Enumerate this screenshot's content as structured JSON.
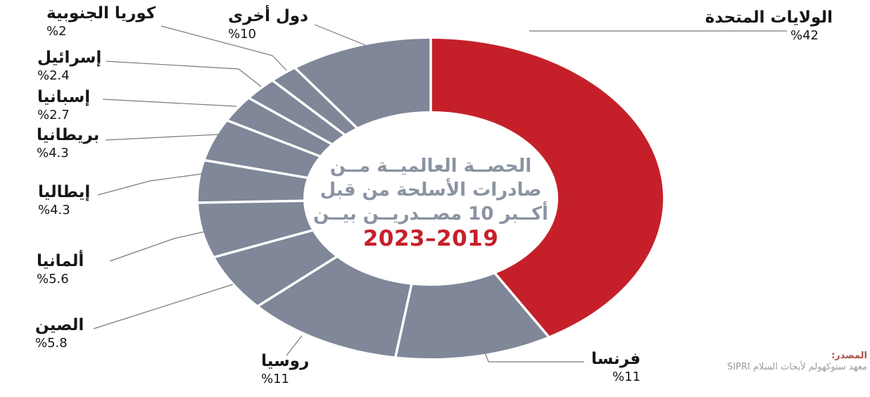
{
  "colors": {
    "red": "#C5202A",
    "gray": "#7F8798",
    "separator": "#FFFFFF",
    "leader": "#7A7A7A",
    "label_text": "#161616",
    "center_text": "#8B93A3",
    "period_text": "#C5202A",
    "source_label": "#B04E46",
    "source_text": "#9C9C9A",
    "background": "#FFFFFF"
  },
  "chart_data": {
    "type": "pie",
    "donut": true,
    "direction": "clockwise",
    "start_angle_deg": 0,
    "center_title_lines": [
      "الحصــة العالميــة مــن",
      "صادرات الأسلحة من قبل",
      "أكــبر 10 مصــدريــن بيــن"
    ],
    "center_period": "2023–2019",
    "slices": [
      {
        "key": "united-states",
        "label": "الولايات المتحدة",
        "value": 42,
        "display": "%42",
        "color_key": "red"
      },
      {
        "key": "france",
        "label": "فرنسا",
        "value": 11,
        "display": "%11",
        "color_key": "gray"
      },
      {
        "key": "russia",
        "label": "روسيا",
        "value": 11,
        "display": "%11",
        "color_key": "gray"
      },
      {
        "key": "china",
        "label": "الصين",
        "value": 5.8,
        "display": "%5.8",
        "color_key": "gray"
      },
      {
        "key": "germany",
        "label": "ألمانيا",
        "value": 5.6,
        "display": "%5.6",
        "color_key": "gray"
      },
      {
        "key": "italy",
        "label": "إيطاليا",
        "value": 4.3,
        "display": "%4.3",
        "color_key": "gray"
      },
      {
        "key": "united-kingdom",
        "label": "بريطانيا",
        "value": 4.3,
        "display": "%4.3",
        "color_key": "gray"
      },
      {
        "key": "spain",
        "label": "إسبانيا",
        "value": 2.7,
        "display": "%2.7",
        "color_key": "gray"
      },
      {
        "key": "israel",
        "label": "إسرائيل",
        "value": 2.4,
        "display": "%2.4",
        "color_key": "gray"
      },
      {
        "key": "south-korea",
        "label": "كوريا الجنوبية",
        "value": 2,
        "display": "%2",
        "color_key": "gray"
      },
      {
        "key": "others",
        "label": "دول أخرى",
        "value": 10,
        "display": "%10",
        "color_key": "gray"
      }
    ],
    "source": {
      "label": "المصدر:",
      "text": "معهد ستوكهولم لأبحاث السلام SIPRI"
    }
  }
}
